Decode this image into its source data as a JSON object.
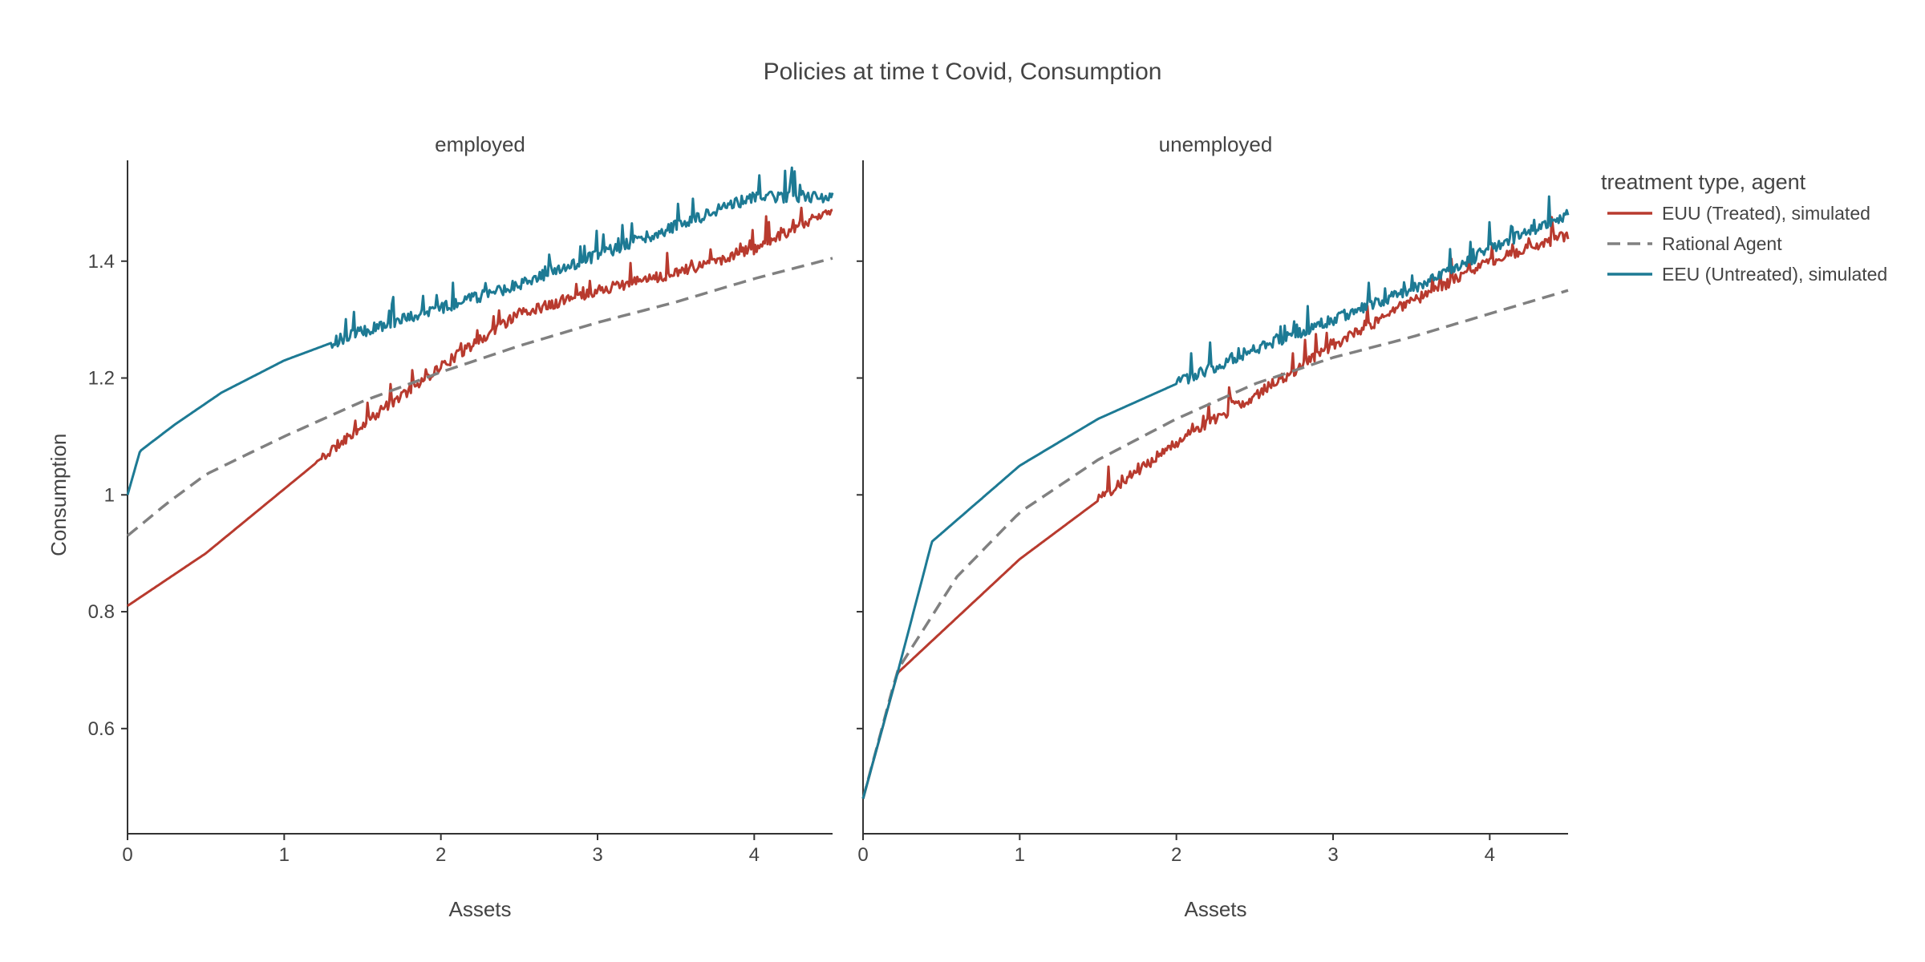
{
  "title": "Policies at time t Covid, Consumption",
  "legend": {
    "title": "treatment type, agent",
    "entries": [
      {
        "label": "EUU (Treated), simulated",
        "color": "#b83a2e",
        "dash": "solid"
      },
      {
        "label": "Rational Agent",
        "color": "#808080",
        "dash": "dash"
      },
      {
        "label": "EEU (Untreated), simulated",
        "color": "#1d7a94",
        "dash": "solid"
      }
    ]
  },
  "chart_data": [
    {
      "type": "line",
      "panel": "employed",
      "title": "employed",
      "xlabel": "Assets",
      "ylabel": "Consumption",
      "xlim": [
        0,
        4.5
      ],
      "ylim": [
        0.42,
        1.6
      ],
      "xticks": [
        0,
        1,
        2,
        3,
        4
      ],
      "yticks": [
        0.6,
        0.8,
        1,
        1.2,
        1.4
      ],
      "ytick_labels": [
        "0.6",
        "0.8",
        "1",
        "1.2",
        "1.4"
      ],
      "series": [
        {
          "name": "EUU (Treated), simulated",
          "color": "#b83a2e",
          "dash": "solid",
          "noise": true,
          "seed": 11,
          "noise_start": 1.2,
          "noise_amp": 0.018,
          "x": [
            0,
            0.5,
            1,
            1.5,
            2,
            2.5,
            3,
            3.5,
            4,
            4.5
          ],
          "y": [
            0.81,
            0.9,
            1.01,
            1.12,
            1.22,
            1.31,
            1.35,
            1.38,
            1.42,
            1.49
          ]
        },
        {
          "name": "Rational Agent",
          "color": "#808080",
          "dash": "dash",
          "noise": false,
          "x": [
            0,
            0.25,
            0.5,
            1,
            1.5,
            2,
            2.5,
            3,
            3.5,
            4,
            4.5
          ],
          "y": [
            0.93,
            0.985,
            1.035,
            1.1,
            1.16,
            1.21,
            1.255,
            1.295,
            1.33,
            1.37,
            1.405
          ]
        },
        {
          "name": "EEU (Untreated), simulated",
          "color": "#1d7a94",
          "dash": "solid",
          "noise": true,
          "seed": 23,
          "noise_start": 1.3,
          "noise_amp": 0.02,
          "x": [
            0,
            0.08,
            0.3,
            0.6,
            1,
            1.5,
            2,
            2.5,
            3,
            3.5,
            4,
            4.5
          ],
          "y": [
            1.0,
            1.075,
            1.12,
            1.175,
            1.23,
            1.28,
            1.32,
            1.36,
            1.41,
            1.46,
            1.51,
            1.51
          ]
        }
      ]
    },
    {
      "type": "line",
      "panel": "unemployed",
      "title": "unemployed",
      "xlabel": "Assets",
      "ylabel": "",
      "xlim": [
        0,
        4.5
      ],
      "ylim": [
        0.42,
        1.6
      ],
      "xticks": [
        0,
        1,
        2,
        3,
        4
      ],
      "yticks": [
        0.6,
        0.8,
        1,
        1.2,
        1.4
      ],
      "ytick_labels": [
        "",
        "",
        "",
        "",
        ""
      ],
      "series": [
        {
          "name": "EUU (Treated), simulated",
          "color": "#b83a2e",
          "dash": "solid",
          "noise": true,
          "seed": 37,
          "noise_start": 1.5,
          "noise_amp": 0.018,
          "x": [
            0,
            0.22,
            0.6,
            1,
            1.5,
            2,
            2.5,
            3,
            3.5,
            4,
            4.5
          ],
          "y": [
            0.48,
            0.695,
            0.79,
            0.89,
            0.99,
            1.09,
            1.17,
            1.255,
            1.33,
            1.4,
            1.445
          ]
        },
        {
          "name": "Rational Agent",
          "color": "#808080",
          "dash": "dash",
          "noise": false,
          "x": [
            0,
            0.22,
            0.6,
            1,
            1.5,
            2,
            2.5,
            3,
            3.5,
            4,
            4.5
          ],
          "y": [
            0.48,
            0.7,
            0.86,
            0.97,
            1.06,
            1.13,
            1.19,
            1.235,
            1.27,
            1.31,
            1.35
          ]
        },
        {
          "name": "EEU (Untreated), simulated",
          "color": "#1d7a94",
          "dash": "solid",
          "noise": true,
          "seed": 53,
          "noise_start": 2.0,
          "noise_amp": 0.02,
          "x": [
            0,
            0.22,
            0.44,
            1,
            1.5,
            2,
            2.5,
            3,
            3.5,
            4,
            4.5
          ],
          "y": [
            0.48,
            0.695,
            0.92,
            1.05,
            1.13,
            1.19,
            1.25,
            1.3,
            1.35,
            1.42,
            1.48
          ]
        }
      ]
    }
  ]
}
